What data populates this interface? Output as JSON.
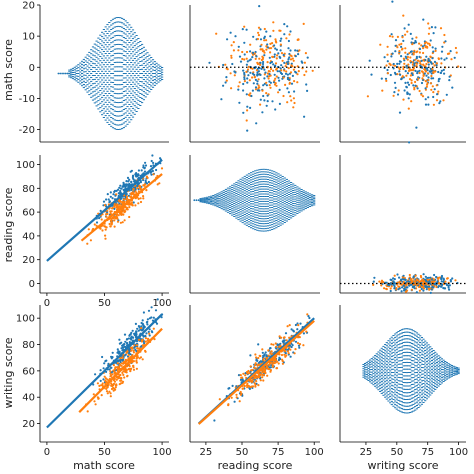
{
  "colors": {
    "series_a": "#1f77b4",
    "series_b": "#ff7f0e",
    "reference_line": "#000000"
  },
  "chart_data": {
    "type": "scatter",
    "layout": "3x3 pair grid",
    "variables": [
      "math score",
      "reading score",
      "writing score"
    ],
    "x_axis_labels": [
      "math score",
      "reading score",
      "writing score"
    ],
    "y_axis_labels": [
      "math score",
      "reading score",
      "writing score"
    ],
    "grid": false,
    "panels": [
      {
        "row": 0,
        "col": 0,
        "type": "swarm",
        "series": "series_a",
        "xlim": [
          -6,
          106
        ],
        "ylim": [
          -24,
          20
        ],
        "yticks": [
          -20,
          -10,
          0,
          10,
          20
        ],
        "center": 62,
        "spread": [
          -20,
          16
        ],
        "x_extent": [
          10,
          100
        ]
      },
      {
        "row": 0,
        "col": 1,
        "type": "residual",
        "x_var": "reading score",
        "xlim": [
          14,
          104
        ],
        "ylim": [
          -24,
          20
        ],
        "x_range": [
          27,
          100
        ],
        "center": 68,
        "sd": 6,
        "reference": 0
      },
      {
        "row": 0,
        "col": 2,
        "type": "residual",
        "x_var": "writing score",
        "xlim": [
          4,
          106
        ],
        "ylim": [
          -24,
          20
        ],
        "x_range": [
          23,
          100
        ],
        "center": 68,
        "sd": 6,
        "reference": 0
      },
      {
        "row": 1,
        "col": 0,
        "type": "scatter",
        "x_var": "math score",
        "y_var": "reading score",
        "xlim": [
          -6,
          106
        ],
        "ylim": [
          -8,
          108
        ],
        "xticks": [
          0,
          50,
          100
        ],
        "yticks": [
          0,
          20,
          40,
          60,
          80,
          100
        ],
        "series": [
          {
            "key": "series_a",
            "x_range": [
              40,
              100
            ],
            "center": 72,
            "fit": {
              "slope": 0.85,
              "intercept": 19
            },
            "fit_range": [
              0,
              100
            ]
          },
          {
            "key": "series_b",
            "x_range": [
              30,
              100
            ],
            "center": 65,
            "fit": {
              "slope": 0.8,
              "intercept": 12
            },
            "fit_range": [
              30,
              100
            ]
          }
        ]
      },
      {
        "row": 1,
        "col": 1,
        "type": "swarm",
        "series": "series_a",
        "xlim": [
          14,
          104
        ],
        "ylim": [
          -8,
          108
        ],
        "center": 65,
        "spread": [
          44,
          96
        ],
        "x_extent": [
          17,
          100
        ]
      },
      {
        "row": 1,
        "col": 2,
        "type": "residual",
        "x_var": "writing score",
        "xlim": [
          4,
          106
        ],
        "ylim": [
          -8,
          108
        ],
        "x_range": [
          27,
          100
        ],
        "center": 68,
        "sd": 3,
        "reference": 0
      },
      {
        "row": 2,
        "col": 0,
        "type": "scatter",
        "x_var": "math score",
        "y_var": "writing score",
        "xlim": [
          -6,
          106
        ],
        "ylim": [
          6,
          110
        ],
        "xticks": [
          0,
          50,
          100
        ],
        "yticks": [
          20,
          40,
          60,
          80,
          100
        ],
        "series": [
          {
            "key": "series_a",
            "x_range": [
              40,
              100
            ],
            "center": 72,
            "fit": {
              "slope": 0.86,
              "intercept": 17
            },
            "fit_range": [
              0,
              100
            ]
          },
          {
            "key": "series_b",
            "x_range": [
              30,
              100
            ],
            "center": 65,
            "fit": {
              "slope": 0.88,
              "intercept": 4
            },
            "fit_range": [
              28,
              100
            ]
          }
        ]
      },
      {
        "row": 2,
        "col": 1,
        "type": "scatter",
        "x_var": "reading score",
        "y_var": "writing score",
        "xlim": [
          14,
          104
        ],
        "ylim": [
          6,
          110
        ],
        "xticks": [
          25,
          50,
          75,
          100
        ],
        "series": [
          {
            "key": "series_a",
            "x_range": [
              25,
              100
            ],
            "center": 68,
            "fit": {
              "slope": 1.0,
              "intercept": 0
            },
            "fit_range": [
              20,
              100
            ]
          },
          {
            "key": "series_b",
            "x_range": [
              25,
              100
            ],
            "center": 68,
            "fit": {
              "slope": 0.98,
              "intercept": 0
            },
            "fit_range": [
              20,
              100
            ]
          }
        ]
      },
      {
        "row": 2,
        "col": 2,
        "type": "swarm",
        "series": "series_a",
        "xlim": [
          4,
          106
        ],
        "ylim": [
          6,
          110
        ],
        "xticks": [
          25,
          50,
          75,
          100
        ],
        "center": 58,
        "spread": [
          28,
          92
        ],
        "x_extent": [
          23,
          100
        ]
      }
    ]
  }
}
